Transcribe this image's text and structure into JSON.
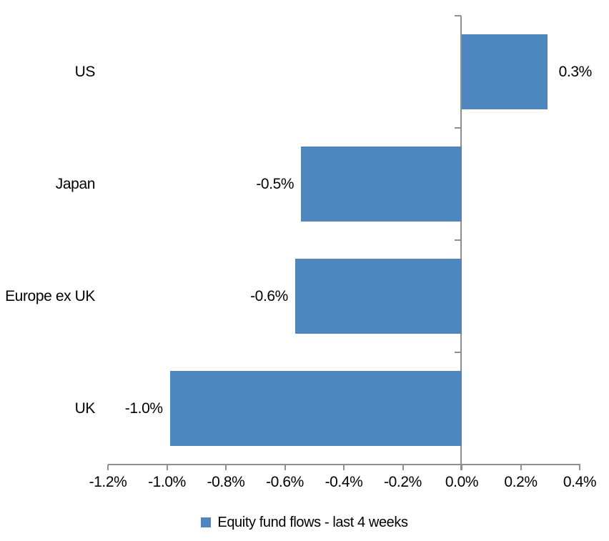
{
  "chart_data": {
    "type": "bar",
    "orientation": "horizontal",
    "title": "",
    "categories": [
      "US",
      "Japan",
      "Europe ex UK",
      "UK"
    ],
    "values": [
      0.3,
      -0.5,
      -0.6,
      -1.0
    ],
    "bar_values_precise": [
      0.29,
      -0.545,
      -0.565,
      -0.99
    ],
    "data_labels": [
      "0.3%",
      "-0.5%",
      "-0.6%",
      "-1.0%"
    ],
    "series_name": "Equity fund flows - last 4 weeks",
    "x_tick_labels": [
      "-1.2%",
      "-1.0%",
      "-0.8%",
      "-0.6%",
      "-0.4%",
      "-0.2%",
      "0.0%",
      "0.2%",
      "0.4%"
    ],
    "x_tick_values": [
      -1.2,
      -1.0,
      -0.8,
      -0.6,
      -0.4,
      -0.2,
      0.0,
      0.2,
      0.4
    ],
    "xlim": [
      -1.2,
      0.4
    ],
    "grid": false,
    "legend_position": "bottom",
    "colors": {
      "bar": "#4E87BE",
      "axis": "#8F8F8F",
      "text": "#000000",
      "background": "#FFFFFF"
    }
  }
}
